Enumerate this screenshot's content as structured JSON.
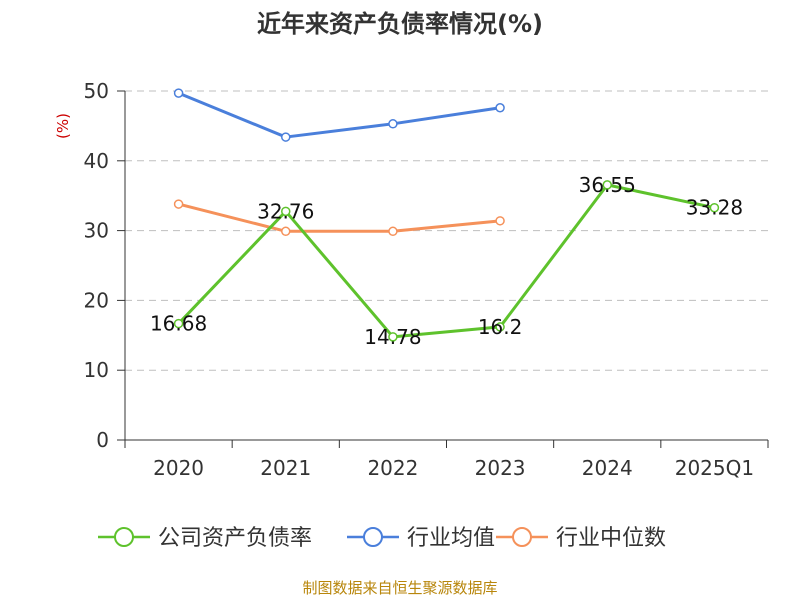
{
  "title": "近年来资产负债率情况(%)",
  "source": "制图数据来自恒生聚源数据库",
  "colors": {
    "company": "#5ec22c",
    "industry_avg": "#4a7fdb",
    "industry_median": "#f5915a",
    "grid": "#bfbfbf",
    "axis": "#333333",
    "unit": "#cc0000",
    "source": "#b8860b"
  },
  "chart_data": {
    "type": "line",
    "title": "近年来资产负债率情况(%)",
    "ylabel": "(%)",
    "xlabel": "",
    "categories": [
      "2020",
      "2021",
      "2022",
      "2023",
      "2024",
      "2025Q1"
    ],
    "ylim": [
      0,
      50
    ],
    "yticks": [
      0,
      10,
      20,
      30,
      40,
      50
    ],
    "grid": true,
    "legend_position": "bottom",
    "series": [
      {
        "name": "公司资产负债率",
        "color": "#5ec22c",
        "values": [
          16.68,
          32.76,
          14.78,
          16.2,
          36.55,
          33.28
        ],
        "labels": [
          "16.68",
          "32.76",
          "14.78",
          "16.2",
          "36.55",
          "33.28"
        ]
      },
      {
        "name": "行业均值",
        "color": "#4a7fdb",
        "values": [
          49.7,
          43.4,
          45.3,
          47.6,
          null,
          null
        ]
      },
      {
        "name": "行业中位数",
        "color": "#f5915a",
        "values": [
          33.8,
          29.9,
          29.9,
          31.4,
          null,
          null
        ]
      }
    ]
  }
}
